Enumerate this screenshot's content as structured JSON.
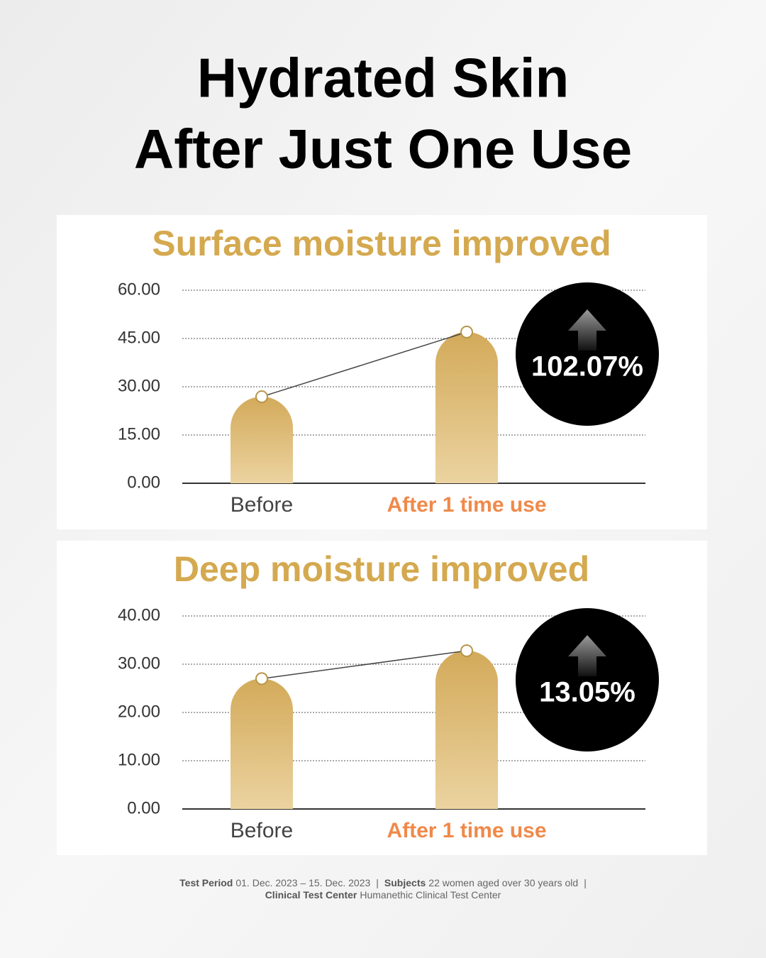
{
  "header": {
    "title_lines": [
      "Hydrated Skin",
      "After Just One Use"
    ]
  },
  "chart_data": [
    {
      "type": "bar",
      "title": "Surface moisture improved",
      "categories": [
        "Before",
        "After 1 time use"
      ],
      "values": [
        26.9,
        47.0
      ],
      "color": "#d4ab5c",
      "ylim": [
        0,
        60
      ],
      "yticks": [
        {
          "value": 0,
          "label": "0.00"
        },
        {
          "value": 15,
          "label": "15.00"
        },
        {
          "value": 30,
          "label": "30.00"
        },
        {
          "value": 45,
          "label": "45.00"
        },
        {
          "value": 60,
          "label": "60.00"
        }
      ],
      "grid": true,
      "annotation": "102.07%"
    },
    {
      "type": "bar",
      "title": "Deep moisture improved",
      "categories": [
        "Before",
        "After 1 time use"
      ],
      "values": [
        27.0,
        32.8
      ],
      "color": "#d4ab5c",
      "ylim": [
        0,
        40
      ],
      "yticks": [
        {
          "value": 0,
          "label": "0.00"
        },
        {
          "value": 10,
          "label": "10.00"
        },
        {
          "value": 20,
          "label": "20.00"
        },
        {
          "value": 30,
          "label": "30.00"
        },
        {
          "value": 40,
          "label": "40.00"
        }
      ],
      "grid": true,
      "annotation": "13.05%"
    }
  ],
  "footer": {
    "separator": "|",
    "lines": [
      [
        {
          "label": "Test Period",
          "text": "01. Dec. 2023 – 15. Dec. 2023"
        },
        {
          "label": "Subjects",
          "text": "22 women aged over 30 years old"
        }
      ],
      [
        {
          "label": "Clinical Test Center",
          "text": "Humanethic Clinical Test Center"
        }
      ]
    ]
  }
}
